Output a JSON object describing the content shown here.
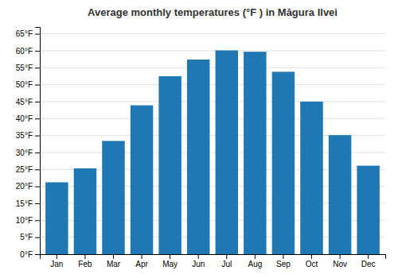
{
  "chart_data": {
    "type": "bar",
    "title": "Average monthly temperatures (°F ) in Măgura Ilvei",
    "categories": [
      "Jan",
      "Feb",
      "Mar",
      "Apr",
      "May",
      "Jun",
      "Jul",
      "Aug",
      "Sep",
      "Oct",
      "Nov",
      "Dec"
    ],
    "values": [
      21.2,
      25.3,
      33.4,
      43.9,
      52.5,
      57.4,
      60.1,
      59.7,
      53.8,
      45.0,
      35.1,
      26.1
    ],
    "ylim": [
      0,
      67
    ],
    "yticks": [
      {
        "value": 0,
        "label": "0°F"
      },
      {
        "value": 5,
        "label": "5°F"
      },
      {
        "value": 10,
        "label": "10°F"
      },
      {
        "value": 15,
        "label": "15°F"
      },
      {
        "value": 20,
        "label": "20°F"
      },
      {
        "value": 25,
        "label": "25°F"
      },
      {
        "value": 30,
        "label": "30°F"
      },
      {
        "value": 35,
        "label": "35°F"
      },
      {
        "value": 40,
        "label": "40°F"
      },
      {
        "value": 45,
        "label": "45°F"
      },
      {
        "value": 50,
        "label": "50°F"
      },
      {
        "value": 55,
        "label": "55°F"
      },
      {
        "value": 60,
        "label": "60°F"
      },
      {
        "value": 65,
        "label": "65°F"
      }
    ],
    "grid": true
  }
}
